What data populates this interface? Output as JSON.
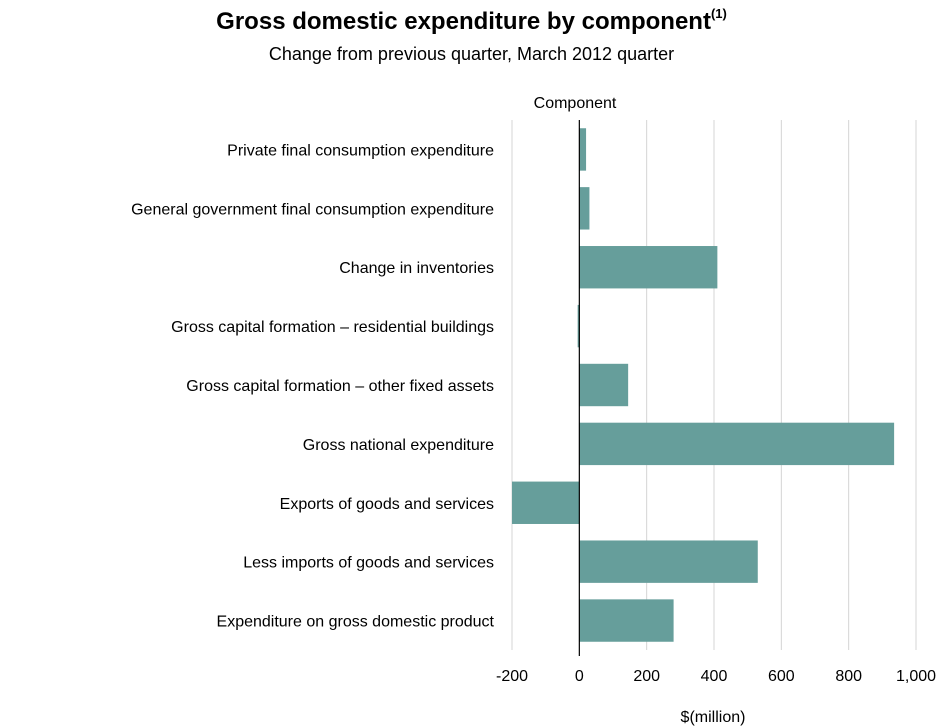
{
  "header": {
    "title": "Gross domestic expenditure by component",
    "title_footnote": "(1)",
    "subtitle": "Change from previous quarter, March 2012 quarter"
  },
  "chart_data": {
    "type": "bar",
    "orientation": "horizontal",
    "title": "Gross domestic expenditure by component",
    "subtitle": "Change from previous quarter, March 2012 quarter",
    "ylabel": "Component",
    "xlabel": "$(million)",
    "categories": [
      "Private final consumption expenditure",
      "General government final consumption expenditure",
      "Change in inventories",
      "Gross capital formation – residential buildings",
      "Gross capital formation – other fixed assets",
      "Gross national expenditure",
      "Exports of goods and services",
      "Less imports of goods and services",
      "Expenditure on gross domestic product"
    ],
    "values": [
      20,
      30,
      410,
      -5,
      145,
      935,
      -200,
      530,
      280
    ],
    "xlim": [
      -200,
      1000
    ],
    "ticks": [
      -200,
      0,
      200,
      400,
      600,
      800,
      1000
    ],
    "tick_labels": [
      "-200",
      "0",
      "200",
      "400",
      "600",
      "800",
      "1,000"
    ],
    "bar_color": "#669e9b",
    "grid": true,
    "legend": "none"
  }
}
